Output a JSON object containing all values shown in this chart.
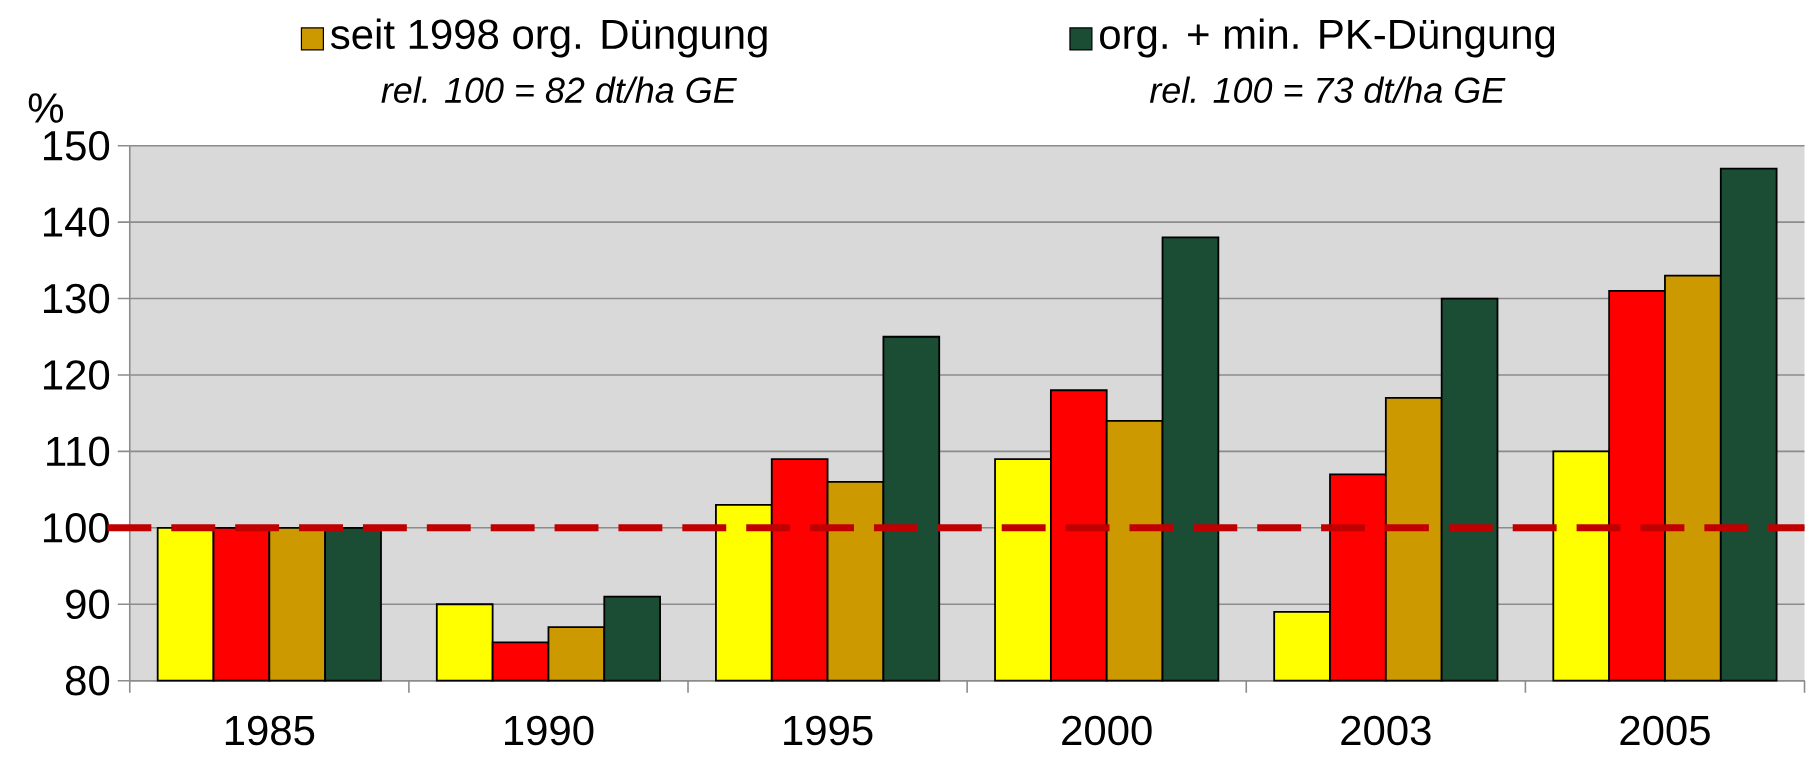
{
  "chart_data": {
    "type": "bar",
    "ylabel": "%",
    "categories": [
      "1985",
      "1990",
      "1995",
      "2000",
      "2003",
      "2005"
    ],
    "series": [
      {
        "color": "#ffff00",
        "values": [
          100,
          90,
          103,
          109,
          89,
          110
        ]
      },
      {
        "color": "#ff0000",
        "values": [
          100,
          85,
          109,
          118,
          107,
          131
        ]
      },
      {
        "name": "seit 1998 org. Düngung",
        "color": "#cc9900",
        "values": [
          100,
          87,
          106,
          114,
          117,
          133
        ]
      },
      {
        "name": "org. + min. PK-Düngung",
        "color": "#1b4d35",
        "values": [
          100,
          91,
          125,
          138,
          130,
          147
        ]
      }
    ],
    "annotations": [
      "*rel. 100 = 82 dt/ha GE*",
      "*rel. 100 = 73 dt/ha GE*"
    ],
    "ylim": [
      80,
      150
    ],
    "yticks": [
      80,
      90,
      100,
      110,
      120,
      130,
      140,
      150
    ],
    "grid": "y",
    "legend": "top",
    "ref_lines": [
      {
        "axis": "y",
        "value": 100,
        "color": "#c00000",
        "line_style": "dashed"
      }
    ]
  }
}
